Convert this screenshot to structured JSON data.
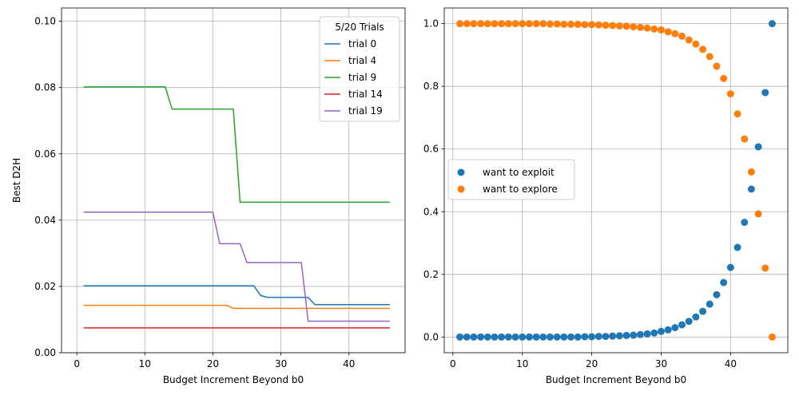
{
  "chart_data": [
    {
      "type": "line",
      "title": "",
      "xlabel": "Budget Increment Beyond b0",
      "ylabel": "Best D2H",
      "xlim": [
        -2.25,
        48.25
      ],
      "ylim": [
        0,
        0.104
      ],
      "xticks": [
        0,
        10,
        20,
        30,
        40
      ],
      "yticks": [
        0.0,
        0.02,
        0.04,
        0.06,
        0.08,
        0.1
      ],
      "ytick_labels": [
        "0.00",
        "0.02",
        "0.04",
        "0.06",
        "0.08",
        "0.10"
      ],
      "grid": true,
      "legend": {
        "title": "5/20 Trials",
        "placement": "top-right"
      },
      "series": [
        {
          "name": "trial 0",
          "color": "#1f77b4",
          "x": [
            1,
            26,
            27,
            28,
            34,
            35,
            46
          ],
          "y": [
            0.0202,
            0.0202,
            0.0173,
            0.0167,
            0.0167,
            0.0145,
            0.0145
          ]
        },
        {
          "name": "trial 4",
          "color": "#ff7f0e",
          "x": [
            1,
            22,
            23,
            46
          ],
          "y": [
            0.0143,
            0.0143,
            0.0134,
            0.0134
          ]
        },
        {
          "name": "trial 9",
          "color": "#2ca02c",
          "x": [
            1,
            13,
            14,
            23,
            24,
            46
          ],
          "y": [
            0.0802,
            0.0802,
            0.0735,
            0.0735,
            0.0454,
            0.0454
          ]
        },
        {
          "name": "trial 14",
          "color": "#d62728",
          "x": [
            1,
            46
          ],
          "y": [
            0.0075,
            0.0075
          ]
        },
        {
          "name": "trial 19",
          "color": "#9467bd",
          "x": [
            1,
            20,
            21,
            24,
            25,
            33,
            34,
            46
          ],
          "y": [
            0.0424,
            0.0424,
            0.0329,
            0.0329,
            0.0272,
            0.0272,
            0.0095,
            0.0095
          ]
        }
      ]
    },
    {
      "type": "scatter",
      "title": "",
      "xlabel": "Budget Increment Beyond b0",
      "ylabel": "",
      "xlim": [
        -1.25,
        48.25
      ],
      "ylim": [
        -0.05,
        1.05
      ],
      "xticks": [
        0,
        10,
        20,
        30,
        40
      ],
      "yticks": [
        0.0,
        0.2,
        0.4,
        0.6,
        0.8,
        1.0
      ],
      "ytick_labels": [
        "0.0",
        "0.2",
        "0.4",
        "0.6",
        "0.8",
        "1.0"
      ],
      "grid": true,
      "legend": {
        "title": "",
        "placement": "center-left"
      },
      "series": [
        {
          "name": "want to exploit",
          "color": "#1f77b4",
          "x": [
            1,
            2,
            3,
            4,
            5,
            6,
            7,
            8,
            9,
            10,
            11,
            12,
            13,
            14,
            15,
            16,
            17,
            18,
            19,
            20,
            21,
            22,
            23,
            24,
            25,
            26,
            27,
            28,
            29,
            30,
            31,
            32,
            33,
            34,
            35,
            36,
            37,
            38,
            39,
            40,
            41,
            42,
            43,
            44,
            45,
            46
          ],
          "y": [
            0.0,
            0.0,
            0.0,
            0.0,
            0.0,
            0.0,
            0.0,
            0.0,
            0.0,
            0.0,
            0.0,
            0.0,
            0.0,
            0.0,
            0.0,
            0.0,
            0.0,
            0.0,
            0.001,
            0.001,
            0.002,
            0.002,
            0.003,
            0.004,
            0.005,
            0.006,
            0.008,
            0.01,
            0.013,
            0.018,
            0.023,
            0.03,
            0.039,
            0.05,
            0.064,
            0.082,
            0.105,
            0.135,
            0.174,
            0.222,
            0.286,
            0.366,
            0.472,
            0.607,
            0.78,
            1.0
          ]
        },
        {
          "name": "want to explore",
          "color": "#ff7f0e",
          "x": [
            1,
            2,
            3,
            4,
            5,
            6,
            7,
            8,
            9,
            10,
            11,
            12,
            13,
            14,
            15,
            16,
            17,
            18,
            19,
            20,
            21,
            22,
            23,
            24,
            25,
            26,
            27,
            28,
            29,
            30,
            31,
            32,
            33,
            34,
            35,
            36,
            37,
            38,
            39,
            40,
            41,
            42,
            43,
            44,
            45,
            46
          ],
          "y": [
            1.0,
            1.0,
            1.0,
            1.0,
            1.0,
            1.0,
            1.0,
            1.0,
            1.0,
            1.0,
            1.0,
            1.0,
            1.0,
            0.999,
            0.999,
            0.998,
            0.998,
            0.998,
            0.997,
            0.997,
            0.996,
            0.995,
            0.994,
            0.993,
            0.992,
            0.99,
            0.988,
            0.986,
            0.983,
            0.98,
            0.974,
            0.968,
            0.96,
            0.948,
            0.935,
            0.918,
            0.895,
            0.864,
            0.825,
            0.776,
            0.712,
            0.632,
            0.527,
            0.393,
            0.22,
            0.0
          ]
        }
      ]
    }
  ]
}
